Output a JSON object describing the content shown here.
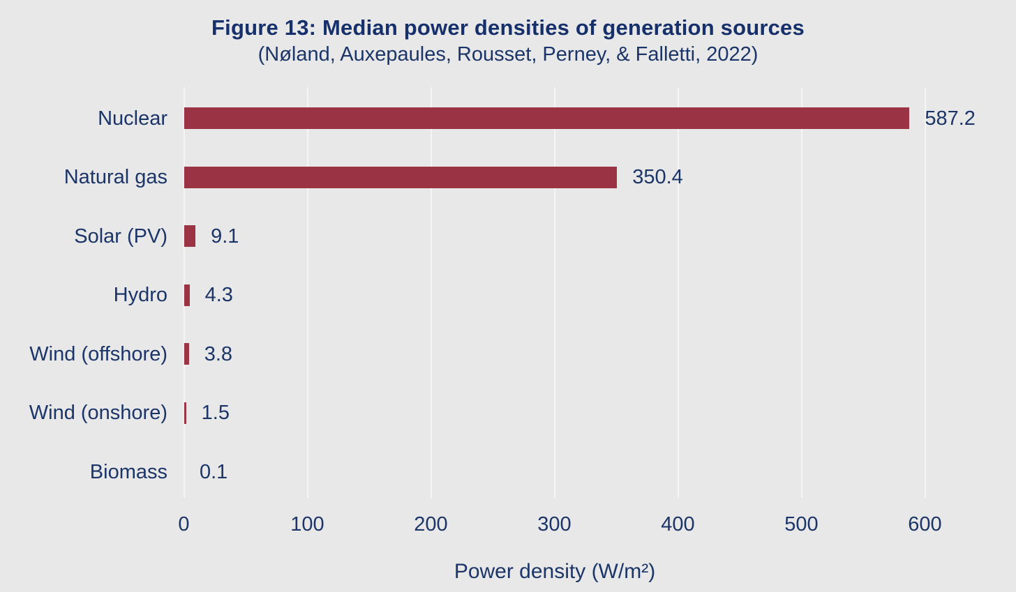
{
  "chart_data": {
    "type": "bar",
    "orientation": "horizontal",
    "title": "Figure 13: Median power densities of generation sources",
    "subtitle": "(Nøland, Auxepaules, Rousset, Perney, & Falletti, 2022)",
    "categories": [
      "Nuclear",
      "Natural gas",
      "Solar (PV)",
      "Hydro",
      "Wind (offshore)",
      "Wind (onshore)",
      "Biomass"
    ],
    "values": [
      587.2,
      350.4,
      9.1,
      4.3,
      3.8,
      1.5,
      0.1
    ],
    "data_labels": [
      "587.2",
      "350.4",
      "9.1",
      "4.3",
      "3.8",
      "1.5",
      "0.1"
    ],
    "xlabel": "Power density (W/m²)",
    "x_ticks": [
      0,
      100,
      200,
      300,
      400,
      500,
      600
    ],
    "xlim": [
      0,
      600
    ],
    "grid": "vertical gridlines at each x tick, spanning plot height",
    "legend": "none",
    "colors": {
      "bar": "#9a3343",
      "text": "#1b3568",
      "title_text": "#16306b",
      "background": "#e9e8e8",
      "gridline": "#f6f5f4"
    }
  }
}
